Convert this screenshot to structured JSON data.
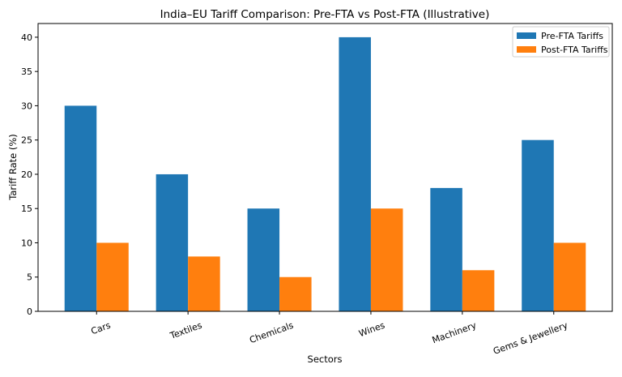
{
  "chart_data": {
    "type": "bar",
    "title": "India–EU Tariff Comparison: Pre-FTA vs Post-FTA (Illustrative)",
    "xlabel": "Sectors",
    "ylabel": "Tariff Rate (%)",
    "categories": [
      "Cars",
      "Textiles",
      "Chemicals",
      "Wines",
      "Machinery",
      "Gems & Jewellery"
    ],
    "series": [
      {
        "name": "Pre-FTA Tariffs",
        "color": "#1f77b4",
        "values": [
          30,
          20,
          15,
          40,
          18,
          25
        ]
      },
      {
        "name": "Post-FTA Tariffs",
        "color": "#ff7f0e",
        "values": [
          10,
          8,
          5,
          15,
          6,
          10
        ]
      }
    ],
    "ylim": [
      0,
      42
    ],
    "yticks": [
      0,
      5,
      10,
      15,
      20,
      25,
      30,
      35,
      40
    ],
    "grid": false,
    "legend": "top-right",
    "xtick_rotation_deg": 20
  }
}
